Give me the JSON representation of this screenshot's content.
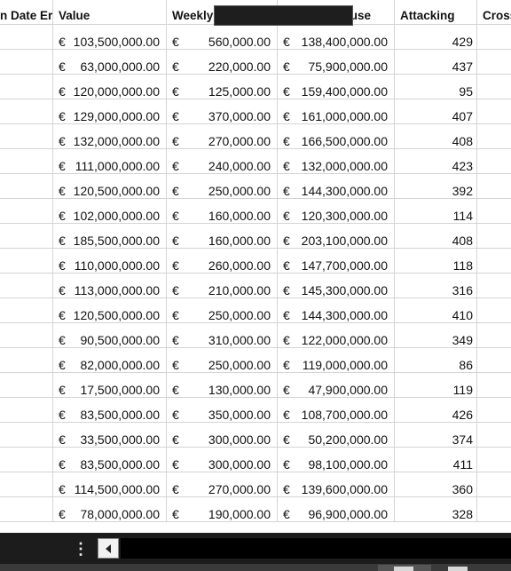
{
  "headers": [
    "n Date Er",
    "Value",
    "Weekly Wage",
    "Release Clause",
    "Attacking",
    "Cross"
  ],
  "currency_symbol": "€",
  "rows": [
    {
      "value": "103,500,000.00",
      "wage": "560,000.00",
      "release": "138,400,000.00",
      "attacking": "429"
    },
    {
      "value": "63,000,000.00",
      "wage": "220,000.00",
      "release": "75,900,000.00",
      "attacking": "437"
    },
    {
      "value": "120,000,000.00",
      "wage": "125,000.00",
      "release": "159,400,000.00",
      "attacking": "95"
    },
    {
      "value": "129,000,000.00",
      "wage": "370,000.00",
      "release": "161,000,000.00",
      "attacking": "407"
    },
    {
      "value": "132,000,000.00",
      "wage": "270,000.00",
      "release": "166,500,000.00",
      "attacking": "408"
    },
    {
      "value": "111,000,000.00",
      "wage": "240,000.00",
      "release": "132,000,000.00",
      "attacking": "423"
    },
    {
      "value": "120,500,000.00",
      "wage": "250,000.00",
      "release": "144,300,000.00",
      "attacking": "392"
    },
    {
      "value": "102,000,000.00",
      "wage": "160,000.00",
      "release": "120,300,000.00",
      "attacking": "114"
    },
    {
      "value": "185,500,000.00",
      "wage": "160,000.00",
      "release": "203,100,000.00",
      "attacking": "408"
    },
    {
      "value": "110,000,000.00",
      "wage": "260,000.00",
      "release": "147,700,000.00",
      "attacking": "118"
    },
    {
      "value": "113,000,000.00",
      "wage": "210,000.00",
      "release": "145,300,000.00",
      "attacking": "316"
    },
    {
      "value": "120,500,000.00",
      "wage": "250,000.00",
      "release": "144,300,000.00",
      "attacking": "410"
    },
    {
      "value": "90,500,000.00",
      "wage": "310,000.00",
      "release": "122,000,000.00",
      "attacking": "349"
    },
    {
      "value": "82,000,000.00",
      "wage": "250,000.00",
      "release": "119,000,000.00",
      "attacking": "86"
    },
    {
      "value": "17,500,000.00",
      "wage": "130,000.00",
      "release": "47,900,000.00",
      "attacking": "119"
    },
    {
      "value": "83,500,000.00",
      "wage": "350,000.00",
      "release": "108,700,000.00",
      "attacking": "426"
    },
    {
      "value": "33,500,000.00",
      "wage": "300,000.00",
      "release": "50,200,000.00",
      "attacking": "374"
    },
    {
      "value": "83,500,000.00",
      "wage": "300,000.00",
      "release": "98,100,000.00",
      "attacking": "411"
    },
    {
      "value": "114,500,000.00",
      "wage": "270,000.00",
      "release": "139,600,000.00",
      "attacking": "360"
    },
    {
      "value": "78,000,000.00",
      "wage": "190,000.00",
      "release": "96,900,000.00",
      "attacking": "328"
    }
  ],
  "toolbar": {
    "kebab_icon": "vertical-ellipsis-icon",
    "kebab_glyph": "⋮",
    "scroll_left_icon": "triangle-left-icon"
  }
}
